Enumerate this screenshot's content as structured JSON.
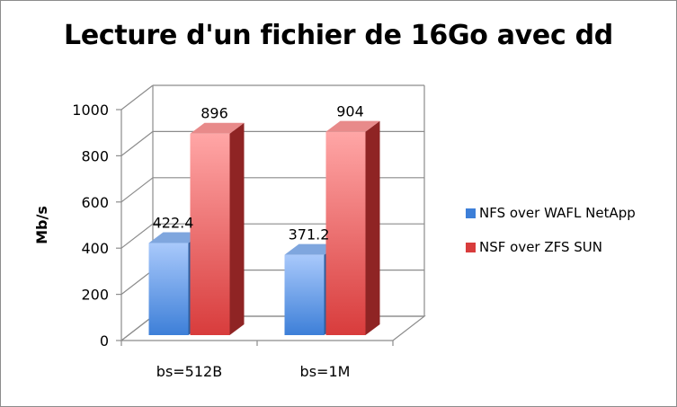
{
  "chart_data": {
    "type": "bar",
    "title": "Lecture d'un fichier de 16Go avec dd",
    "ylabel": "Mb/s",
    "xlabel": "",
    "categories": [
      "bs=512B",
      "bs=1M"
    ],
    "series": [
      {
        "name": "NFS over WAFL NetApp",
        "values": [
          422.4,
          371.2
        ],
        "labels": [
          "422.4",
          "371.2"
        ]
      },
      {
        "name": "NSF over ZFS SUN",
        "values": [
          896,
          904
        ],
        "labels": [
          "896",
          "904"
        ]
      }
    ],
    "ylim": [
      0,
      1000
    ],
    "yticks": [
      0,
      200,
      400,
      600,
      800,
      1000
    ],
    "grid": true,
    "legend": "right",
    "style": "3d-column",
    "colors": {
      "series1_front_light": "#a9c9fb",
      "series1_front_dark": "#3d7fd8",
      "series1_top": "#7fa6de",
      "series1_side": "#2f5f9e",
      "series2_front_light": "#ffa6a6",
      "series2_front_dark": "#d83c3c",
      "series2_top": "#e88a8a",
      "series2_side": "#8f2424"
    }
  }
}
